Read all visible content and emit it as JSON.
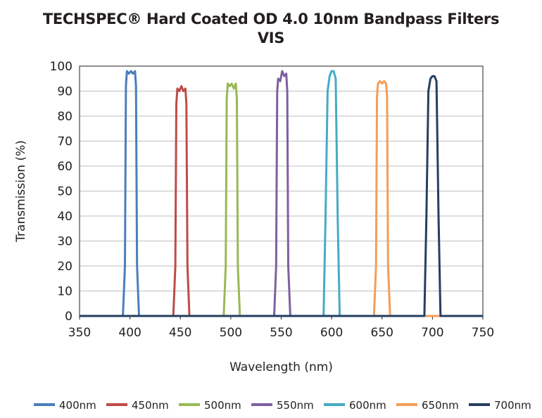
{
  "chart_data": {
    "type": "line",
    "title": "TECHSPEC® Hard Coated OD 4.0 10nm Bandpass Filters",
    "subtitle": "VIS",
    "xlabel": "Wavelength (nm)",
    "ylabel": "Transmission (%)",
    "xlim": [
      350,
      750
    ],
    "ylim": [
      0,
      100
    ],
    "xticks": [
      350,
      400,
      450,
      500,
      550,
      600,
      650,
      700,
      750
    ],
    "yticks": [
      0,
      10,
      20,
      30,
      40,
      50,
      60,
      70,
      80,
      90,
      100
    ],
    "grid": "horizontal",
    "legend_position": "bottom",
    "series": [
      {
        "name": "400nm",
        "color": "#4a7ebb",
        "x": [
          350,
          393,
          395,
          396,
          397,
          399,
          401,
          403,
          405,
          406,
          407,
          409,
          750
        ],
        "y": [
          0,
          0,
          20,
          92,
          98,
          97,
          98,
          97,
          98,
          92,
          20,
          0,
          0
        ]
      },
      {
        "name": "450nm",
        "color": "#be4b48",
        "x": [
          350,
          443,
          445,
          446,
          447,
          449,
          451,
          453,
          455,
          456,
          457,
          459,
          750
        ],
        "y": [
          0,
          0,
          20,
          85,
          91,
          90,
          92,
          90,
          91,
          85,
          20,
          0,
          0
        ]
      },
      {
        "name": "500nm",
        "color": "#98b954",
        "x": [
          350,
          493,
          495,
          496,
          497,
          499,
          501,
          503,
          505,
          506,
          507,
          509,
          750
        ],
        "y": [
          0,
          0,
          20,
          87,
          93,
          92,
          93,
          91,
          93,
          87,
          20,
          0,
          0
        ]
      },
      {
        "name": "550nm",
        "color": "#7d60a0",
        "x": [
          350,
          543,
          545,
          546,
          547,
          549,
          551,
          553,
          555,
          556,
          557,
          559,
          750
        ],
        "y": [
          0,
          0,
          20,
          90,
          95,
          94,
          98,
          96,
          97,
          90,
          20,
          0,
          0
        ]
      },
      {
        "name": "600nm",
        "color": "#46aac5",
        "x": [
          350,
          592,
          594,
          596,
          598,
          600,
          602,
          604,
          606,
          608,
          750
        ],
        "y": [
          0,
          0,
          40,
          90,
          96,
          98,
          98,
          95,
          40,
          0,
          0
        ]
      },
      {
        "name": "650nm",
        "color": "#f59d56",
        "x": [
          350,
          642,
          644,
          645,
          646,
          648,
          650,
          652,
          654,
          655,
          656,
          658,
          750
        ],
        "y": [
          0,
          0,
          20,
          88,
          93,
          94,
          93,
          94,
          93,
          88,
          20,
          0,
          0
        ]
      },
      {
        "name": "700nm",
        "color": "#253f60",
        "x": [
          350,
          692,
          694,
          696,
          698,
          700,
          702,
          704,
          706,
          708,
          750
        ],
        "y": [
          0,
          0,
          40,
          90,
          95,
          96,
          96,
          94,
          40,
          0,
          0
        ]
      }
    ]
  }
}
